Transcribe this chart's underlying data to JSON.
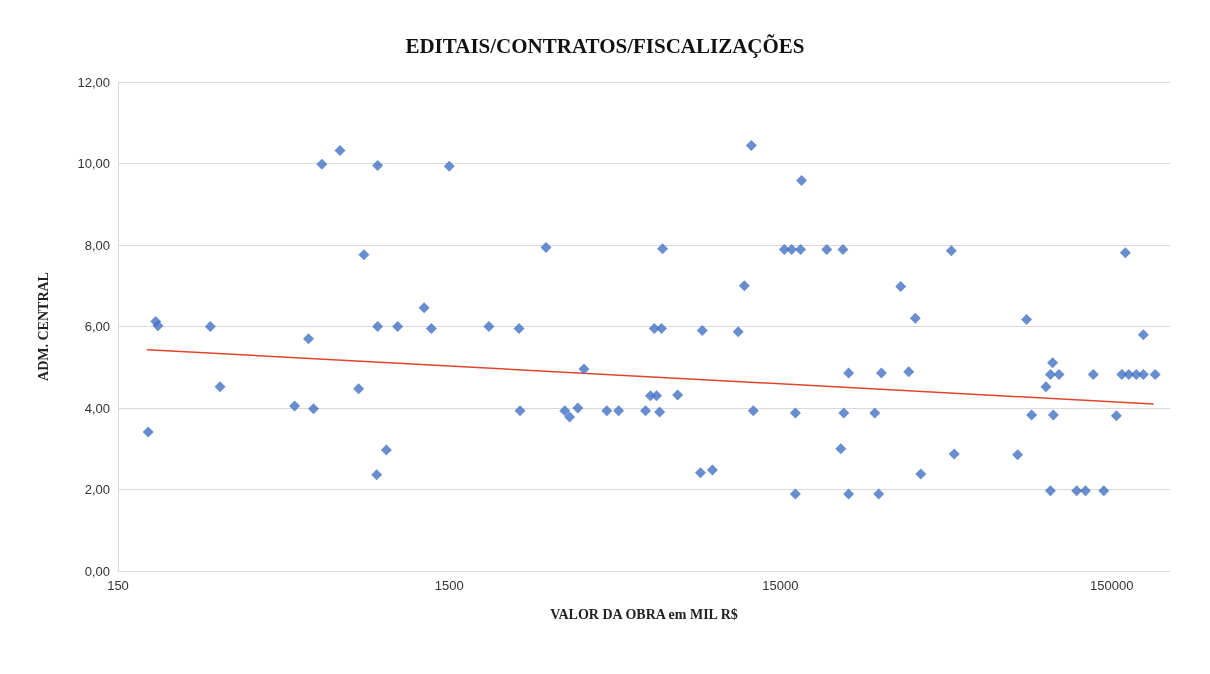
{
  "chart_data": {
    "type": "scatter",
    "title": "EDITAIS/CONTRATOS/FISCALIZAÇÕES",
    "xlabel": "VALOR DA OBRA em MIL R$",
    "ylabel": "ADM. CENTRAL",
    "log": "x",
    "grid": "y",
    "xlim": [
      150,
      225000
    ],
    "xticks": [
      150,
      1500,
      15000,
      150000
    ],
    "ylim": [
      0,
      12
    ],
    "yticks": [
      {
        "value": 0,
        "label": "0,00"
      },
      {
        "value": 2,
        "label": "2,00"
      },
      {
        "value": 4,
        "label": "4,00"
      },
      {
        "value": 6,
        "label": "6,00"
      },
      {
        "value": 8,
        "label": "8,00"
      },
      {
        "value": 10,
        "label": "10,00"
      },
      {
        "value": 12,
        "label": "12,00"
      }
    ],
    "series": [
      {
        "color": "#4472c4",
        "marker": "diamond",
        "x": [
          185,
          195,
          198,
          285,
          305,
          512,
          584,
          564,
          619,
          702,
          829,
          799,
          912,
          912,
          906,
          969,
          1048,
          1260,
          1325,
          1500,
          1977,
          2437,
          2455,
          2939,
          3350,
          3464,
          3667,
          3826,
          4486,
          4871,
          5873,
          6076,
          6340,
          6475,
          6240,
          6560,
          6610,
          7340,
          8710,
          8600,
          9350,
          11180,
          11670,
          12250,
          12420,
          15410,
          16220,
          17250,
          17370,
          16640,
          16640,
          20700,
          23160,
          24090,
          23300,
          22820,
          24090,
          29700,
          28900,
          30270,
          36600,
          34600,
          38300,
          39800,
          49200,
          50200,
          78000,
          83000,
          86000,
          95000,
          99500,
          98000,
          104000,
          100000,
          98000,
          117600,
          125000,
          142000,
          132000,
          155000,
          165000,
          187000,
          161000,
          169000,
          178000,
          187000,
          203000
        ],
        "values": [
          3.41,
          6.12,
          6.02,
          6.0,
          4.52,
          4.05,
          3.98,
          5.7,
          9.98,
          10.32,
          7.76,
          4.47,
          9.95,
          6.0,
          2.36,
          2.97,
          6.0,
          6.46,
          5.95,
          9.93,
          6.0,
          5.95,
          3.93,
          7.94,
          3.93,
          3.78,
          4.0,
          4.96,
          3.93,
          3.93,
          3.93,
          4.3,
          4.3,
          3.9,
          5.95,
          5.95,
          7.91,
          4.32,
          5.9,
          2.41,
          2.48,
          5.87,
          7.0,
          10.44,
          3.93,
          7.89,
          7.89,
          7.89,
          9.58,
          3.88,
          1.89,
          7.89,
          7.89,
          4.86,
          3.88,
          3.0,
          1.89,
          1.89,
          3.88,
          4.86,
          4.89,
          6.98,
          6.2,
          2.38,
          7.86,
          2.87,
          2.85,
          6.17,
          3.83,
          4.52,
          5.11,
          4.82,
          4.82,
          3.83,
          1.97,
          1.97,
          1.97,
          1.97,
          4.82,
          3.81,
          7.81,
          5.8,
          4.82,
          4.82,
          4.82,
          4.82,
          4.82
        ]
      },
      {
        "type": "line",
        "marker": "none",
        "color": "#e0452c",
        "x": [
          184,
          200000
        ],
        "values": [
          5.43,
          4.1
        ]
      }
    ]
  }
}
